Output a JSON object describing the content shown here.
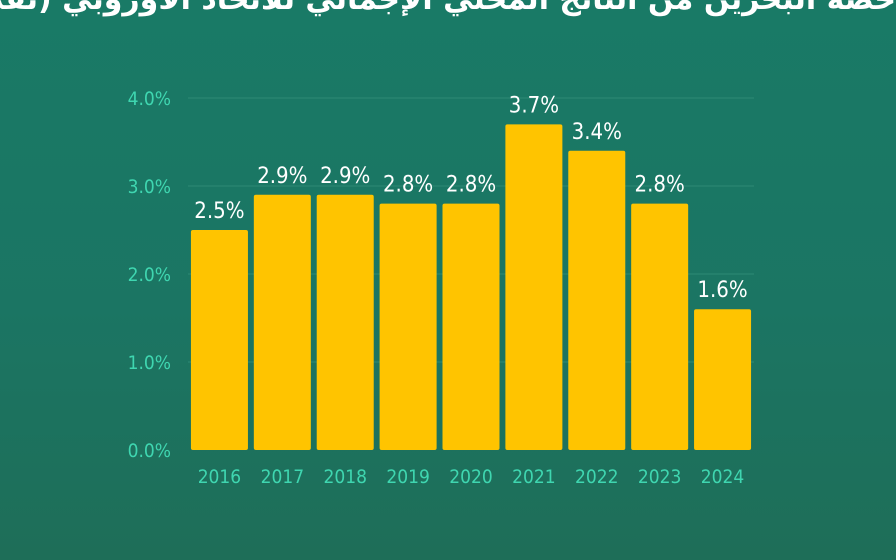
{
  "title": "حصة البحرين من الناتج المحلي الإجمالي للاتحاد الأوروبي (تقديرية)",
  "colors": {
    "bar": "#ffc400",
    "tick": "#3fd6b0",
    "label": "#ffffff",
    "background": "#1b7563"
  },
  "chart_data": {
    "type": "bar",
    "title": "",
    "xlabel": "",
    "ylabel": "",
    "categories": [
      "2016",
      "2017",
      "2018",
      "2019",
      "2020",
      "2021",
      "2022",
      "2023",
      "2024"
    ],
    "values": [
      2.5,
      2.9,
      2.9,
      2.8,
      2.8,
      3.7,
      3.4,
      2.8,
      1.6
    ],
    "value_labels": [
      "2.5%",
      "2.9%",
      "2.9%",
      "2.8%",
      "2.8%",
      "3.7%",
      "3.4%",
      "2.8%",
      "1.6%"
    ],
    "yticks": [
      "0.0%",
      "1.0%",
      "2.0%",
      "3.0%",
      "4.0%"
    ],
    "ylim": [
      0,
      4
    ],
    "grid": true,
    "legend": "none"
  }
}
